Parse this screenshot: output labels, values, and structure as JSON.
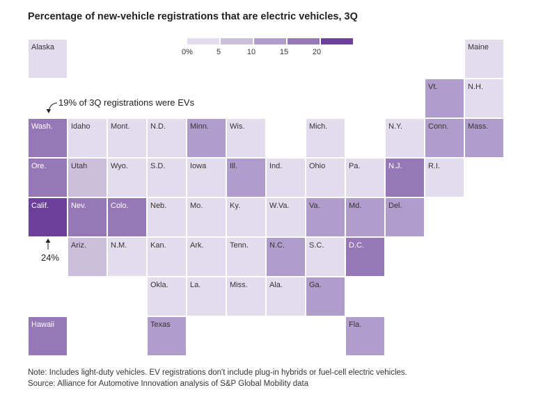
{
  "title": "Percentage of new-vehicle registrations that are electric vehicles, 3Q",
  "legend": {
    "labels": [
      "0%",
      "5",
      "10",
      "15",
      "20"
    ],
    "colors": [
      "#e2dced",
      "#cbbfdc",
      "#b09dcb",
      "#9678b8",
      "#6b3f9a"
    ]
  },
  "annotations": {
    "wash": "19% of 3Q registrations were EVs",
    "calif": "24%"
  },
  "states": [
    {
      "abbr": "Alaska",
      "col": 0,
      "row": 0,
      "level": 0
    },
    {
      "abbr": "Maine",
      "col": 11,
      "row": 0,
      "level": 0
    },
    {
      "abbr": "Vt.",
      "col": 10,
      "row": 1,
      "level": 2
    },
    {
      "abbr": "N.H.",
      "col": 11,
      "row": 1,
      "level": 0
    },
    {
      "abbr": "Wash.",
      "col": 0,
      "row": 2,
      "level": 3
    },
    {
      "abbr": "Idaho",
      "col": 1,
      "row": 2,
      "level": 0
    },
    {
      "abbr": "Mont.",
      "col": 2,
      "row": 2,
      "level": 0
    },
    {
      "abbr": "N.D.",
      "col": 3,
      "row": 2,
      "level": 0
    },
    {
      "abbr": "Minn.",
      "col": 4,
      "row": 2,
      "level": 2
    },
    {
      "abbr": "Wis.",
      "col": 5,
      "row": 2,
      "level": 0
    },
    {
      "abbr": "Mich.",
      "col": 7,
      "row": 2,
      "level": 0
    },
    {
      "abbr": "N.Y.",
      "col": 9,
      "row": 2,
      "level": 0
    },
    {
      "abbr": "Conn.",
      "col": 10,
      "row": 2,
      "level": 2
    },
    {
      "abbr": "Mass.",
      "col": 11,
      "row": 2,
      "level": 2
    },
    {
      "abbr": "Ore.",
      "col": 0,
      "row": 3,
      "level": 3
    },
    {
      "abbr": "Utah",
      "col": 1,
      "row": 3,
      "level": 1
    },
    {
      "abbr": "Wyo.",
      "col": 2,
      "row": 3,
      "level": 0
    },
    {
      "abbr": "S.D.",
      "col": 3,
      "row": 3,
      "level": 0
    },
    {
      "abbr": "Iowa",
      "col": 4,
      "row": 3,
      "level": 0
    },
    {
      "abbr": "Ill.",
      "col": 5,
      "row": 3,
      "level": 2
    },
    {
      "abbr": "Ind.",
      "col": 6,
      "row": 3,
      "level": 0
    },
    {
      "abbr": "Ohio",
      "col": 7,
      "row": 3,
      "level": 0
    },
    {
      "abbr": "Pa.",
      "col": 8,
      "row": 3,
      "level": 0
    },
    {
      "abbr": "N.J.",
      "col": 9,
      "row": 3,
      "level": 3
    },
    {
      "abbr": "R.I.",
      "col": 10,
      "row": 3,
      "level": 0
    },
    {
      "abbr": "Calif.",
      "col": 0,
      "row": 4,
      "level": 4
    },
    {
      "abbr": "Nev.",
      "col": 1,
      "row": 4,
      "level": 3
    },
    {
      "abbr": "Colo.",
      "col": 2,
      "row": 4,
      "level": 3
    },
    {
      "abbr": "Neb.",
      "col": 3,
      "row": 4,
      "level": 0
    },
    {
      "abbr": "Mo.",
      "col": 4,
      "row": 4,
      "level": 0
    },
    {
      "abbr": "Ky.",
      "col": 5,
      "row": 4,
      "level": 0
    },
    {
      "abbr": "W.Va.",
      "col": 6,
      "row": 4,
      "level": 0
    },
    {
      "abbr": "Va.",
      "col": 7,
      "row": 4,
      "level": 2
    },
    {
      "abbr": "Md.",
      "col": 8,
      "row": 4,
      "level": 2
    },
    {
      "abbr": "Del.",
      "col": 9,
      "row": 4,
      "level": 2
    },
    {
      "abbr": "Ariz.",
      "col": 1,
      "row": 5,
      "level": 1
    },
    {
      "abbr": "N.M.",
      "col": 2,
      "row": 5,
      "level": 0
    },
    {
      "abbr": "Kan.",
      "col": 3,
      "row": 5,
      "level": 0
    },
    {
      "abbr": "Ark.",
      "col": 4,
      "row": 5,
      "level": 0
    },
    {
      "abbr": "Tenn.",
      "col": 5,
      "row": 5,
      "level": 0
    },
    {
      "abbr": "N.C.",
      "col": 6,
      "row": 5,
      "level": 2
    },
    {
      "abbr": "S.C.",
      "col": 7,
      "row": 5,
      "level": 0
    },
    {
      "abbr": "D.C.",
      "col": 8,
      "row": 5,
      "level": 3
    },
    {
      "abbr": "Okla.",
      "col": 3,
      "row": 6,
      "level": 0
    },
    {
      "abbr": "La.",
      "col": 4,
      "row": 6,
      "level": 0
    },
    {
      "abbr": "Miss.",
      "col": 5,
      "row": 6,
      "level": 0
    },
    {
      "abbr": "Ala.",
      "col": 6,
      "row": 6,
      "level": 0
    },
    {
      "abbr": "Ga.",
      "col": 7,
      "row": 6,
      "level": 2
    },
    {
      "abbr": "Hawaii",
      "col": 0,
      "row": 7,
      "level": 3
    },
    {
      "abbr": "Texas",
      "col": 3,
      "row": 7,
      "level": 2
    },
    {
      "abbr": "Fla.",
      "col": 8,
      "row": 7,
      "level": 2
    }
  ],
  "footer": {
    "note": "Note: Includes light-duty vehicles. EV registrations don't include plug-in hybrids or fuel-cell electric vehicles.",
    "source": "Source: Alliance for Automotive Innovation analysis of S&P Global Mobility data"
  }
}
